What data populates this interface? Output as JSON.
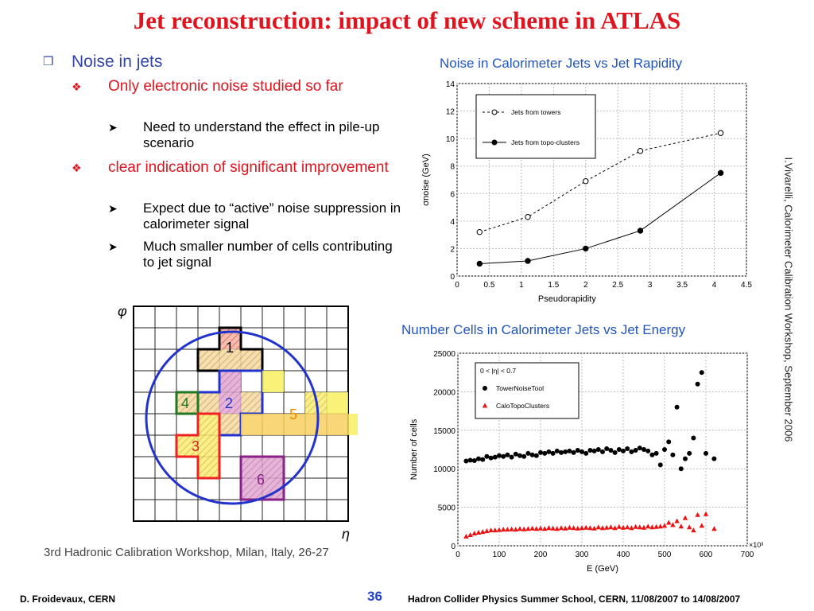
{
  "slide": {
    "title": "Jet reconstruction: impact of new scheme in ATLAS",
    "bullets": {
      "b1": "Noise in jets",
      "b1_1": "Only electronic noise studied so far",
      "b1_1_1": "Need to understand the effect in pile-up scenario",
      "b1_2": "clear indication of significant improvement",
      "b1_2_1": "Expect due to “active” noise suppression in calorimeter signal",
      "b1_2_2": "Much smaller number of  cells contributing to jet signal"
    },
    "workshop_caption": "3rd Hadronic Calibration Workshop, Milan, Italy, 26-27",
    "side_credit": "I.Vivarelli, Calorimeter Calibration Workshop, September 2006",
    "footer": {
      "left": "D. Froidevaux, CERN",
      "page": "36",
      "right": "Hadron Collider Physics Summer School, CERN, 11/08/2007 to 14/08/2007"
    },
    "diagram": {
      "phi_label": "φ",
      "eta_label": "η",
      "cluster_labels": [
        "1",
        "2",
        "3",
        "4",
        "5",
        "6"
      ]
    }
  },
  "chart_data": [
    {
      "type": "line",
      "title": "Noise in Calorimeter Jets vs Jet Rapidity",
      "xlabel": "Pseudorapidity",
      "ylabel": "σnoise (GeV)",
      "xlim": [
        0,
        4.5
      ],
      "ylim": [
        0,
        14
      ],
      "xticks": [
        "0",
        "0.5",
        "1",
        "1.5",
        "2",
        "2.5",
        "3",
        "3.5",
        "4",
        "4.5"
      ],
      "yticks": [
        "0",
        "2",
        "4",
        "6",
        "8",
        "10",
        "12",
        "14"
      ],
      "grid": true,
      "legend_position": "top-left",
      "series": [
        {
          "name": "Jets from towers",
          "x": [
            0.35,
            1.1,
            2.0,
            2.85,
            4.1
          ],
          "y": [
            3.2,
            4.3,
            6.9,
            9.1,
            10.4
          ]
        },
        {
          "name": "Jets from topo-clusters",
          "x": [
            0.35,
            1.1,
            2.0,
            2.85,
            4.1
          ],
          "y": [
            0.9,
            1.1,
            2.0,
            3.3,
            7.5
          ]
        }
      ]
    },
    {
      "type": "scatter",
      "title": "Number Cells in Calorimeter Jets vs Jet Energy",
      "xlabel": "E (GeV)",
      "ylabel": "Number of cells",
      "xlim": [
        0,
        700
      ],
      "ylim": [
        0,
        25000
      ],
      "x_multiplier_label": "×10³",
      "xticks": [
        "0",
        "100",
        "200",
        "300",
        "400",
        "500",
        "600",
        "700"
      ],
      "yticks": [
        "0",
        "5000",
        "10000",
        "15000",
        "20000",
        "25000"
      ],
      "grid": true,
      "legend_position": "top-left",
      "legend_header": "0 < |η| < 0.7",
      "series": [
        {
          "name": "TowerNoiseTool",
          "x": [
            20,
            30,
            40,
            50,
            60,
            70,
            80,
            90,
            100,
            110,
            120,
            130,
            140,
            150,
            160,
            170,
            180,
            190,
            200,
            210,
            220,
            230,
            240,
            250,
            260,
            270,
            280,
            290,
            300,
            310,
            320,
            330,
            340,
            350,
            360,
            370,
            380,
            390,
            400,
            410,
            420,
            430,
            440,
            450,
            460,
            470,
            480,
            490,
            500,
            510,
            520,
            530,
            540,
            550,
            560,
            570,
            580,
            590,
            600,
            620
          ],
          "y": [
            11000,
            11100,
            11050,
            11300,
            11200,
            11600,
            11400,
            11500,
            11700,
            11600,
            11800,
            11500,
            11900,
            11700,
            11600,
            12000,
            11800,
            11700,
            12100,
            12000,
            12200,
            12000,
            12300,
            12100,
            12200,
            12300,
            12100,
            12400,
            12200,
            12000,
            12400,
            12300,
            12500,
            12200,
            12600,
            12400,
            12100,
            12500,
            12300,
            12600,
            12200,
            12400,
            12700,
            12500,
            12300,
            11800,
            12000,
            10500,
            12500,
            13500,
            11800,
            18000,
            10000,
            11300,
            12000,
            14000,
            21000,
            22500,
            12000,
            11300
          ]
        },
        {
          "name": "CaloTopoClusters",
          "x": [
            20,
            30,
            40,
            50,
            60,
            70,
            80,
            90,
            100,
            110,
            120,
            130,
            140,
            150,
            160,
            170,
            180,
            190,
            200,
            210,
            220,
            230,
            240,
            250,
            260,
            270,
            280,
            290,
            300,
            310,
            320,
            330,
            340,
            350,
            360,
            370,
            380,
            390,
            400,
            410,
            420,
            430,
            440,
            450,
            460,
            470,
            480,
            490,
            500,
            510,
            520,
            530,
            540,
            550,
            560,
            570,
            580,
            590,
            600,
            620
          ],
          "y": [
            1200,
            1400,
            1600,
            1700,
            1800,
            1900,
            2000,
            2000,
            2050,
            2100,
            2100,
            2150,
            2100,
            2200,
            2150,
            2200,
            2250,
            2200,
            2250,
            2200,
            2300,
            2250,
            2200,
            2300,
            2250,
            2350,
            2300,
            2250,
            2300,
            2350,
            2300,
            2250,
            2400,
            2300,
            2350,
            2400,
            2300,
            2450,
            2350,
            2400,
            2300,
            2450,
            2400,
            2350,
            2500,
            2400,
            2450,
            2500,
            2600,
            3000,
            2700,
            3200,
            2500,
            3600,
            2400,
            2000,
            4000,
            2600,
            4100,
            2200
          ]
        }
      ]
    }
  ]
}
